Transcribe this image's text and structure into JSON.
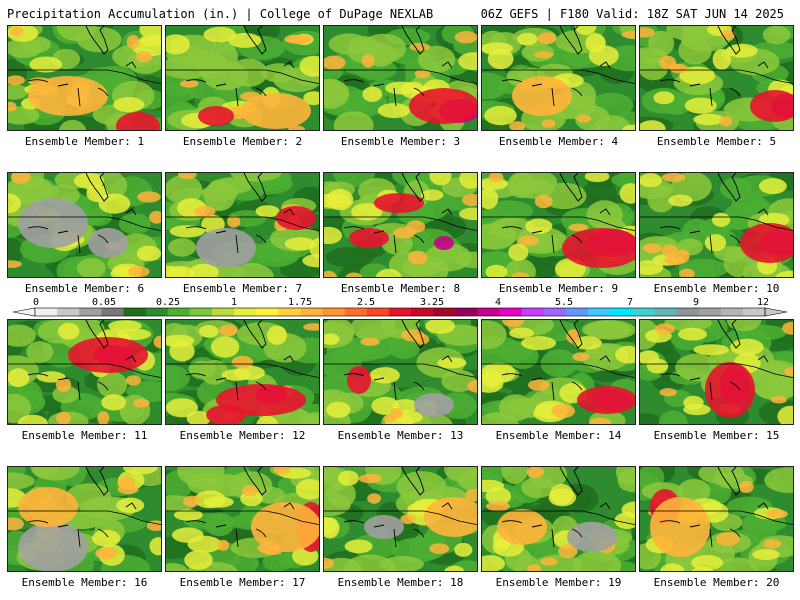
{
  "header": {
    "title_left": "Precipitation Accumulation (in.) | College of DuPage NEXLAB",
    "title_right": "06Z GEFS | F180 Valid: 18Z SAT JUN 14 2025"
  },
  "colorbar": {
    "labels": [
      "0",
      "0.05",
      "0.25",
      "1",
      "1.75",
      "2.5",
      "3.25",
      "4",
      "5.5",
      "7",
      "9",
      "12"
    ],
    "colors": [
      "#f0f0f0",
      "#c8c8c8",
      "#a0a0a0",
      "#787878",
      "#1e6e1e",
      "#2e8b2e",
      "#4caf32",
      "#7ac83c",
      "#b8dc3c",
      "#e6ee3c",
      "#fff03c",
      "#ffd23c",
      "#ffb43c",
      "#ff9632",
      "#ff6e2d",
      "#ff4628",
      "#e6142d",
      "#c80a28",
      "#a00a28",
      "#96005a",
      "#c8008c",
      "#e600c8",
      "#c83cff",
      "#a064ff",
      "#6496ff",
      "#3cc8ff",
      "#00e6ff",
      "#3cd2d2",
      "#64b4b4",
      "#8c9696",
      "#a0a0a0",
      "#b4b4b4",
      "#c8c8c8"
    ]
  },
  "members": [
    {
      "caption": "Ensemble Member: 1"
    },
    {
      "caption": "Ensemble Member: 2"
    },
    {
      "caption": "Ensemble Member: 3"
    },
    {
      "caption": "Ensemble Member: 4"
    },
    {
      "caption": "Ensemble Member: 5"
    },
    {
      "caption": "Ensemble Member: 6"
    },
    {
      "caption": "Ensemble Member: 7"
    },
    {
      "caption": "Ensemble Member: 8"
    },
    {
      "caption": "Ensemble Member: 9"
    },
    {
      "caption": "Ensemble Member: 10"
    },
    {
      "caption": "Ensemble Member: 11"
    },
    {
      "caption": "Ensemble Member: 12"
    },
    {
      "caption": "Ensemble Member: 13"
    },
    {
      "caption": "Ensemble Member: 14"
    },
    {
      "caption": "Ensemble Member: 15"
    },
    {
      "caption": "Ensemble Member: 16"
    },
    {
      "caption": "Ensemble Member: 17"
    },
    {
      "caption": "Ensemble Member: 18"
    },
    {
      "caption": "Ensemble Member: 19"
    },
    {
      "caption": "Ensemble Member: 20"
    }
  ],
  "field_colors": {
    "base": "#2e8b2e",
    "dark": "#1e6e1e",
    "light": "#4caf32",
    "lime": "#8cc83c",
    "yellow": "#e6ee3c",
    "orange": "#ffb43c",
    "red": "#e6142d",
    "magenta": "#c8008c",
    "violet": "#c83cff",
    "cyan": "#3cc8ff",
    "gray": "#a0a0a0",
    "grayLight": "#c8c8c8"
  }
}
